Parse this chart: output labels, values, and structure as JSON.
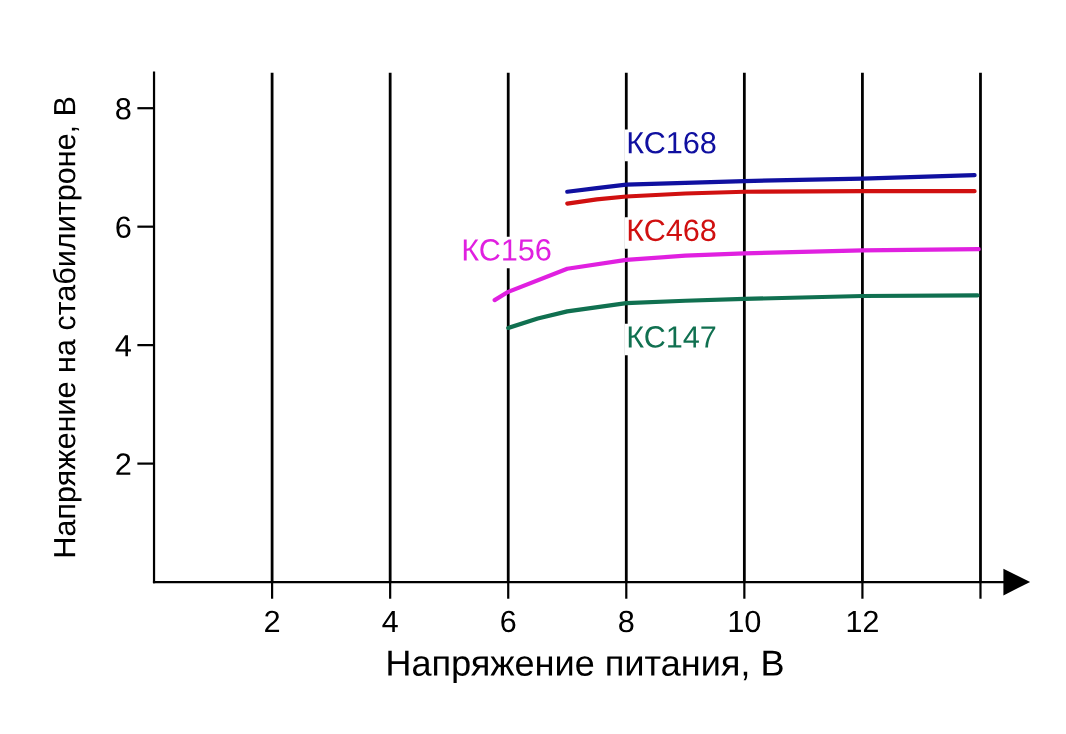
{
  "chart_data": {
    "type": "line",
    "xlabel": "Напряжение питания, В",
    "ylabel": "Напряжение на стабилитроне, В",
    "xlim": [
      0,
      14.6
    ],
    "ylim": [
      0,
      8.6
    ],
    "xticks": [
      2,
      4,
      6,
      8,
      10,
      12,
      {
        "value": 14,
        "label": null
      }
    ],
    "yticks": [
      2,
      4,
      6,
      8
    ],
    "grid": "x",
    "legend": false,
    "marker": "none",
    "line_style": "solid",
    "series": [
      {
        "name": "КС168",
        "color": "#1010a0",
        "x": [
          7.0,
          7.5,
          8.0,
          9.0,
          10.0,
          12.0,
          13.9
        ],
        "values": [
          6.59,
          6.65,
          6.71,
          6.74,
          6.77,
          6.81,
          6.87
        ]
      },
      {
        "name": "КС468",
        "color": "#d01010",
        "x": [
          7.0,
          7.5,
          8.0,
          9.0,
          10.0,
          12.0,
          13.9
        ],
        "values": [
          6.39,
          6.46,
          6.51,
          6.56,
          6.59,
          6.6,
          6.6
        ]
      },
      {
        "name": "КС156",
        "color": "#e020e0",
        "x": [
          5.77,
          6.0,
          7.0,
          8.0,
          9.0,
          10.0,
          12.0,
          13.97
        ],
        "values": [
          4.76,
          4.9,
          5.29,
          5.44,
          5.51,
          5.55,
          5.6,
          5.62
        ]
      },
      {
        "name": "КС147",
        "color": "#107050",
        "x": [
          6.0,
          6.5,
          7.0,
          8.0,
          9.0,
          10.0,
          12.0,
          13.95
        ],
        "values": [
          4.29,
          4.45,
          4.57,
          4.71,
          4.75,
          4.78,
          4.83,
          4.84
        ]
      }
    ]
  }
}
